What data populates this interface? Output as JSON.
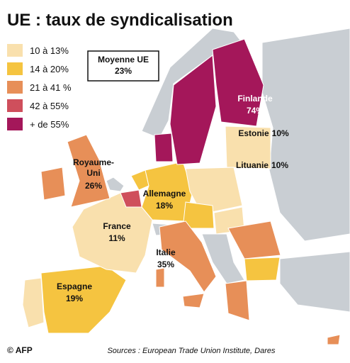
{
  "title": "UE : taux de syndicalisation",
  "legend": [
    {
      "label": "10 à 13%",
      "color": "#f9e0ad"
    },
    {
      "label": "14 à 20%",
      "color": "#f5c440"
    },
    {
      "label": "21 à 41 %",
      "color": "#e78f58"
    },
    {
      "label": "42 à 55%",
      "color": "#cf4f5c"
    },
    {
      "label": "+ de 55%",
      "color": "#a4175a"
    }
  ],
  "average": {
    "label": "Moyenne UE",
    "value": "23%"
  },
  "countries": [
    {
      "name": "Finlande",
      "rate": "74%"
    },
    {
      "name": "Estonie",
      "rate": "10%"
    },
    {
      "name": "Lituanie",
      "rate": "10%"
    },
    {
      "name": "Royaume-Uni",
      "rate": "26%"
    },
    {
      "name": "Allemagne",
      "rate": "18%"
    },
    {
      "name": "France",
      "rate": "11%"
    },
    {
      "name": "Italie",
      "rate": "35%"
    },
    {
      "name": "Espagne",
      "rate": "19%"
    }
  ],
  "source": "Sources : European Trade Union Institute, Dares",
  "credit": "© AFP"
}
